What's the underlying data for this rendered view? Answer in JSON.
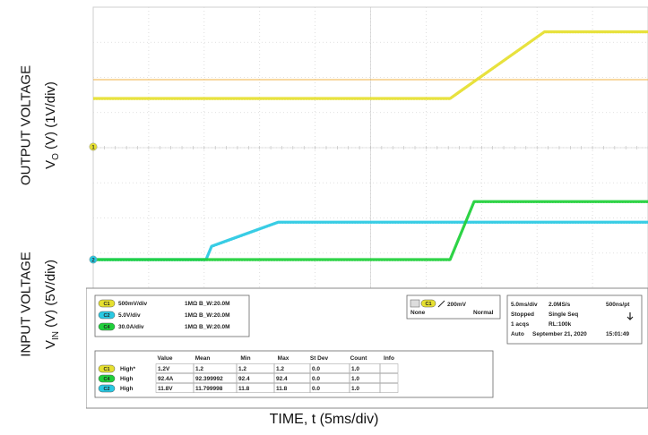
{
  "chart_data": {
    "type": "line",
    "x_unit_label": "TIME, t (5ms/div)",
    "y_labels": {
      "output_line1": "OUTPUT VOLTAGE",
      "output_line2_pre": "V",
      "output_line2_sub": "O",
      "output_line2_post": " (V) (1V/div)",
      "input_line1": "INPUT VOLTAGE",
      "input_line2_pre": "V",
      "input_line2_sub": "IN",
      "input_line2_post": " (V) (5V/div)"
    },
    "time_per_div_ms": 5,
    "x_divisions": 10,
    "series": [
      {
        "channel": "C1",
        "color": "#e6e030",
        "points": [
          [
            0,
            2.0
          ],
          [
            19.3,
            2.0
          ],
          [
            24.4,
            4.76
          ],
          [
            30,
            4.76
          ]
        ]
      },
      {
        "channel": "C2",
        "color": "#29c9e3",
        "points": [
          [
            0,
            0.0
          ],
          [
            6.1,
            0.0
          ],
          [
            6.4,
            0.55
          ],
          [
            10.0,
            1.55
          ],
          [
            30,
            1.55
          ]
        ]
      },
      {
        "channel": "C4",
        "color": "#1fd03a",
        "points": [
          [
            0,
            0.0
          ],
          [
            19.3,
            0.0
          ],
          [
            20.6,
            2.4
          ],
          [
            30,
            2.4
          ]
        ]
      }
    ],
    "markers": [
      {
        "label": "1",
        "color": "#e6e030"
      },
      {
        "label": "2",
        "color": "#29c9e3"
      }
    ],
    "channels": [
      {
        "id": "C1",
        "scale": "500mV/div",
        "coupling": "1MΩ",
        "bw": "B_W:20.0M",
        "color": "#e6e030"
      },
      {
        "id": "C2",
        "scale": "5.0V/div",
        "coupling": "1MΩ",
        "bw": "B_W:20.0M",
        "color": "#29c9e3"
      },
      {
        "id": "C4",
        "scale": "30.0A/div",
        "coupling": "1MΩ",
        "bw": "B_W:20.0M",
        "color": "#1fd03a"
      }
    ],
    "trigger": {
      "channel": "C1",
      "level": "200mV",
      "source": "None",
      "mode": "Normal"
    },
    "acquisition": {
      "rows": [
        [
          "5.0ms/div",
          "2.0MS/s",
          "500ns/pt"
        ],
        [
          "Stopped",
          "Single Seq",
          ""
        ],
        [
          "1 acqs",
          "RL:100k",
          ""
        ],
        [
          "Auto",
          "September 21, 2020",
          "15:01:49"
        ]
      ]
    },
    "measurements": {
      "headers": [
        "",
        "Value",
        "Mean",
        "Min",
        "Max",
        "St Dev",
        "Count",
        "Info"
      ],
      "rows": [
        {
          "channel": "C1",
          "color": "#e6e030",
          "cells": [
            "High*",
            "1.2V",
            "1.2",
            "1.2",
            "1.2",
            "0.0",
            "1.0",
            ""
          ]
        },
        {
          "channel": "C4",
          "color": "#1fd03a",
          "cells": [
            "High",
            "92.4A",
            "92.399992",
            "92.4",
            "92.4",
            "0.0",
            "1.0",
            ""
          ]
        },
        {
          "channel": "C2",
          "color": "#29c9e3",
          "cells": [
            "High",
            "11.8V",
            "11.799998",
            "11.8",
            "11.8",
            "0.0",
            "1.0",
            ""
          ]
        }
      ]
    }
  }
}
